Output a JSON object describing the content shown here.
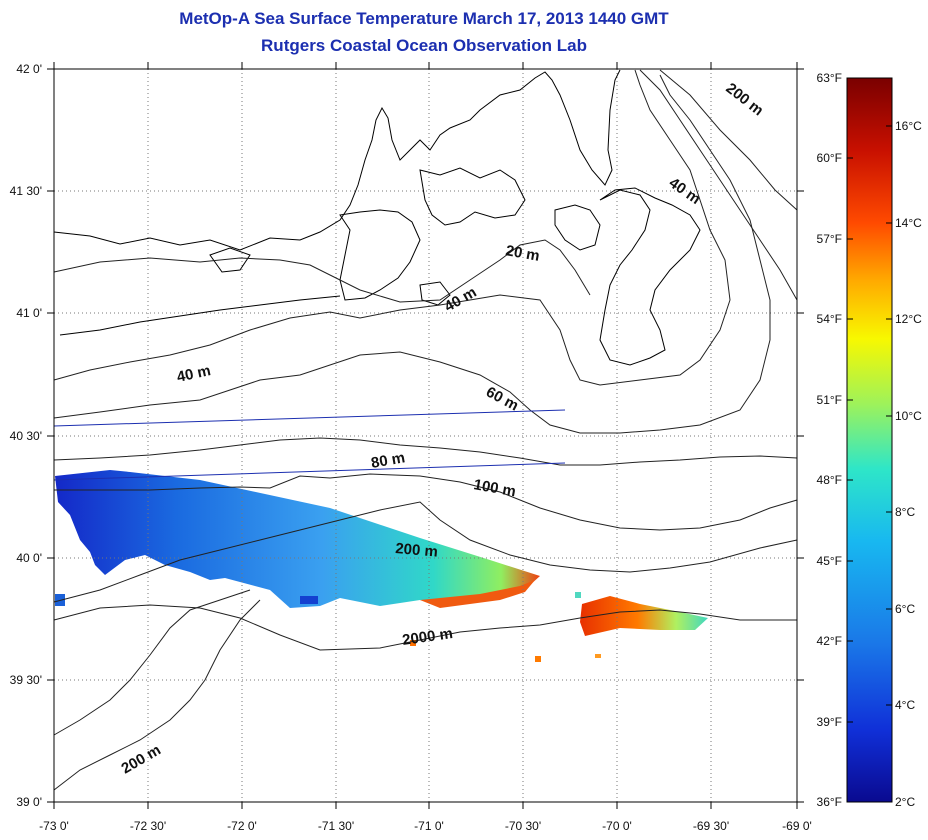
{
  "title_line1": "MetOp-A Sea Surface Temperature March 17, 2013 1440 GMT",
  "title_line2": "Rutgers Coastal Ocean Observation Lab",
  "lat_labels": [
    "42 0'",
    "41 30'",
    "41 0'",
    "40 30'",
    "40 0'",
    "39 30'",
    "39 0'"
  ],
  "lon_labels": [
    "-73 0'",
    "-72 30'",
    "-72 0'",
    "-71 30'",
    "-71 0'",
    "-70 30'",
    "-70 0'",
    "-69 30'",
    "-69 0'"
  ],
  "depth_labels": [
    "200 m",
    "40 m",
    "20 m",
    "40 m",
    "40 m",
    "60 m",
    "80 m",
    "100 m",
    "200 m",
    "2000 m",
    "200 m"
  ],
  "colorbar": {
    "f_labels": [
      "63°F",
      "60°F",
      "57°F",
      "54°F",
      "51°F",
      "48°F",
      "45°F",
      "42°F",
      "39°F",
      "36°F"
    ],
    "c_labels": [
      "16°C",
      "14°C",
      "12°C",
      "10°C",
      "8°C",
      "6°C",
      "4°C",
      "2°C"
    ],
    "colors": [
      "#7a0000",
      "#c81000",
      "#ff4a00",
      "#ffaa00",
      "#f8f800",
      "#9ef25a",
      "#2ee6c8",
      "#18b8f0",
      "#1a78e8",
      "#1030d8",
      "#0a0a90"
    ]
  }
}
